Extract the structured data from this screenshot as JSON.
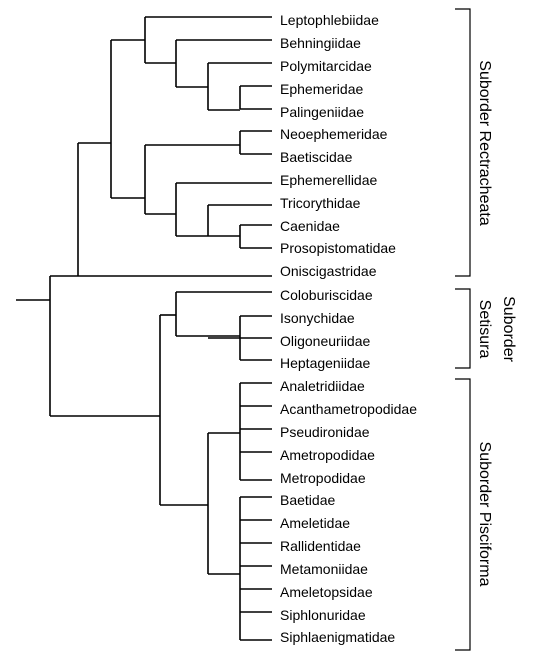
{
  "taxa": [
    "Leptophlebiidae",
    "Behningiidae",
    "Polymitarcidae",
    "Ephemeridae",
    "Palingeniidae",
    "Neoephemeridae",
    "Baetiscidae",
    "Ephemerellidae",
    "Tricorythidae",
    "Caenidae",
    "Prosopistomatidae",
    "Oniscigastridae",
    "Coloburiscidae",
    "Isonychidae",
    "Oligoneuriidae",
    "Heptageniidae",
    "Analetridiidae",
    "Acanthametropodidae",
    "Pseudironidae",
    "Ametropodidae",
    "Metropodidae",
    "Baetidae",
    "Ameletidae",
    "Rallidentidae",
    "Metamoniidae",
    "Ameletopsidae",
    "Siphlonuridae",
    "Siphlaenigmatidae"
  ],
  "suborders": [
    {
      "label": "Suborder Rectracheata",
      "from": 0,
      "to": 11
    },
    {
      "label_line1": "Suborder",
      "label_line2": "Setisura",
      "from": 12,
      "to": 15
    },
    {
      "label": "Suborder Pisciforma",
      "from": 16,
      "to": 27
    }
  ]
}
